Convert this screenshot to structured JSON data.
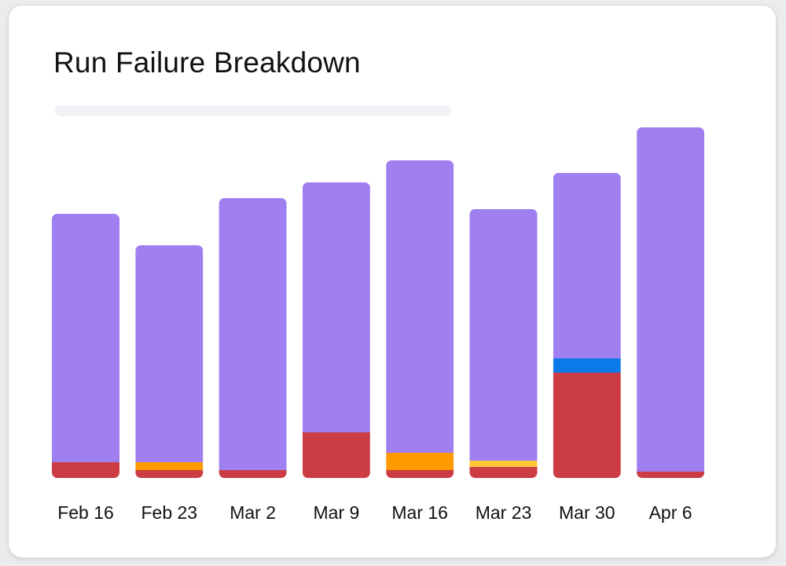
{
  "colors": {
    "success": "#a080f0",
    "failed": "#cc3c44",
    "timeout": "#ff9a00",
    "warning": "#ffc83a",
    "cancelled": "#0a7ae8"
  },
  "chart_data": {
    "type": "bar",
    "stacked": true,
    "title": "Run Failure Breakdown",
    "xlabel": "",
    "ylabel": "",
    "grid": false,
    "categories": [
      "Feb 16",
      "Feb 23",
      "Mar 2",
      "Mar 9",
      "Mar 16",
      "Mar 23",
      "Mar 30",
      "Apr 6"
    ],
    "series": [
      {
        "color_key": "failed",
        "values": [
          20,
          10,
          10,
          58,
          10,
          14,
          134,
          8
        ]
      },
      {
        "color_key": "timeout",
        "values": [
          0,
          10,
          0,
          0,
          22,
          0,
          0,
          0
        ]
      },
      {
        "color_key": "warning",
        "values": [
          0,
          0,
          0,
          0,
          0,
          8,
          0,
          0
        ]
      },
      {
        "color_key": "cancelled",
        "values": [
          0,
          0,
          0,
          0,
          0,
          0,
          18,
          0
        ]
      },
      {
        "color_key": "success",
        "values": [
          316,
          276,
          346,
          318,
          372,
          320,
          236,
          438
        ]
      }
    ],
    "ylim": [
      0,
      450
    ]
  }
}
